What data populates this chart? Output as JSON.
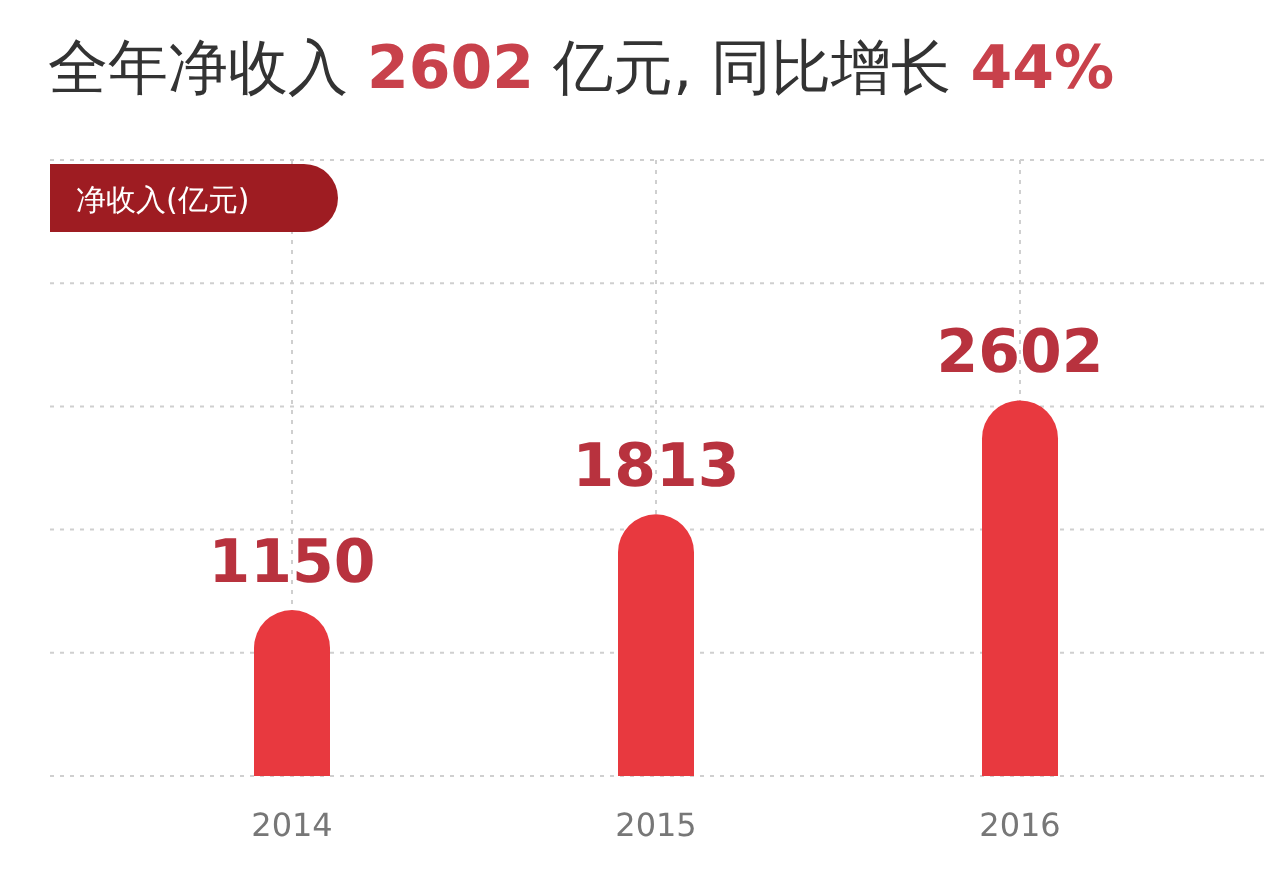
{
  "chart_data": {
    "type": "bar",
    "title": "全年净收入 2602 亿元, 同比增长 44%",
    "annotations": [
      "净收入(亿元)"
    ],
    "categories": [
      "2014",
      "2015",
      "2016"
    ],
    "values": [
      1150,
      1813,
      2602
    ],
    "color": "#e8393f",
    "data_labels": true,
    "grid": true
  }
}
